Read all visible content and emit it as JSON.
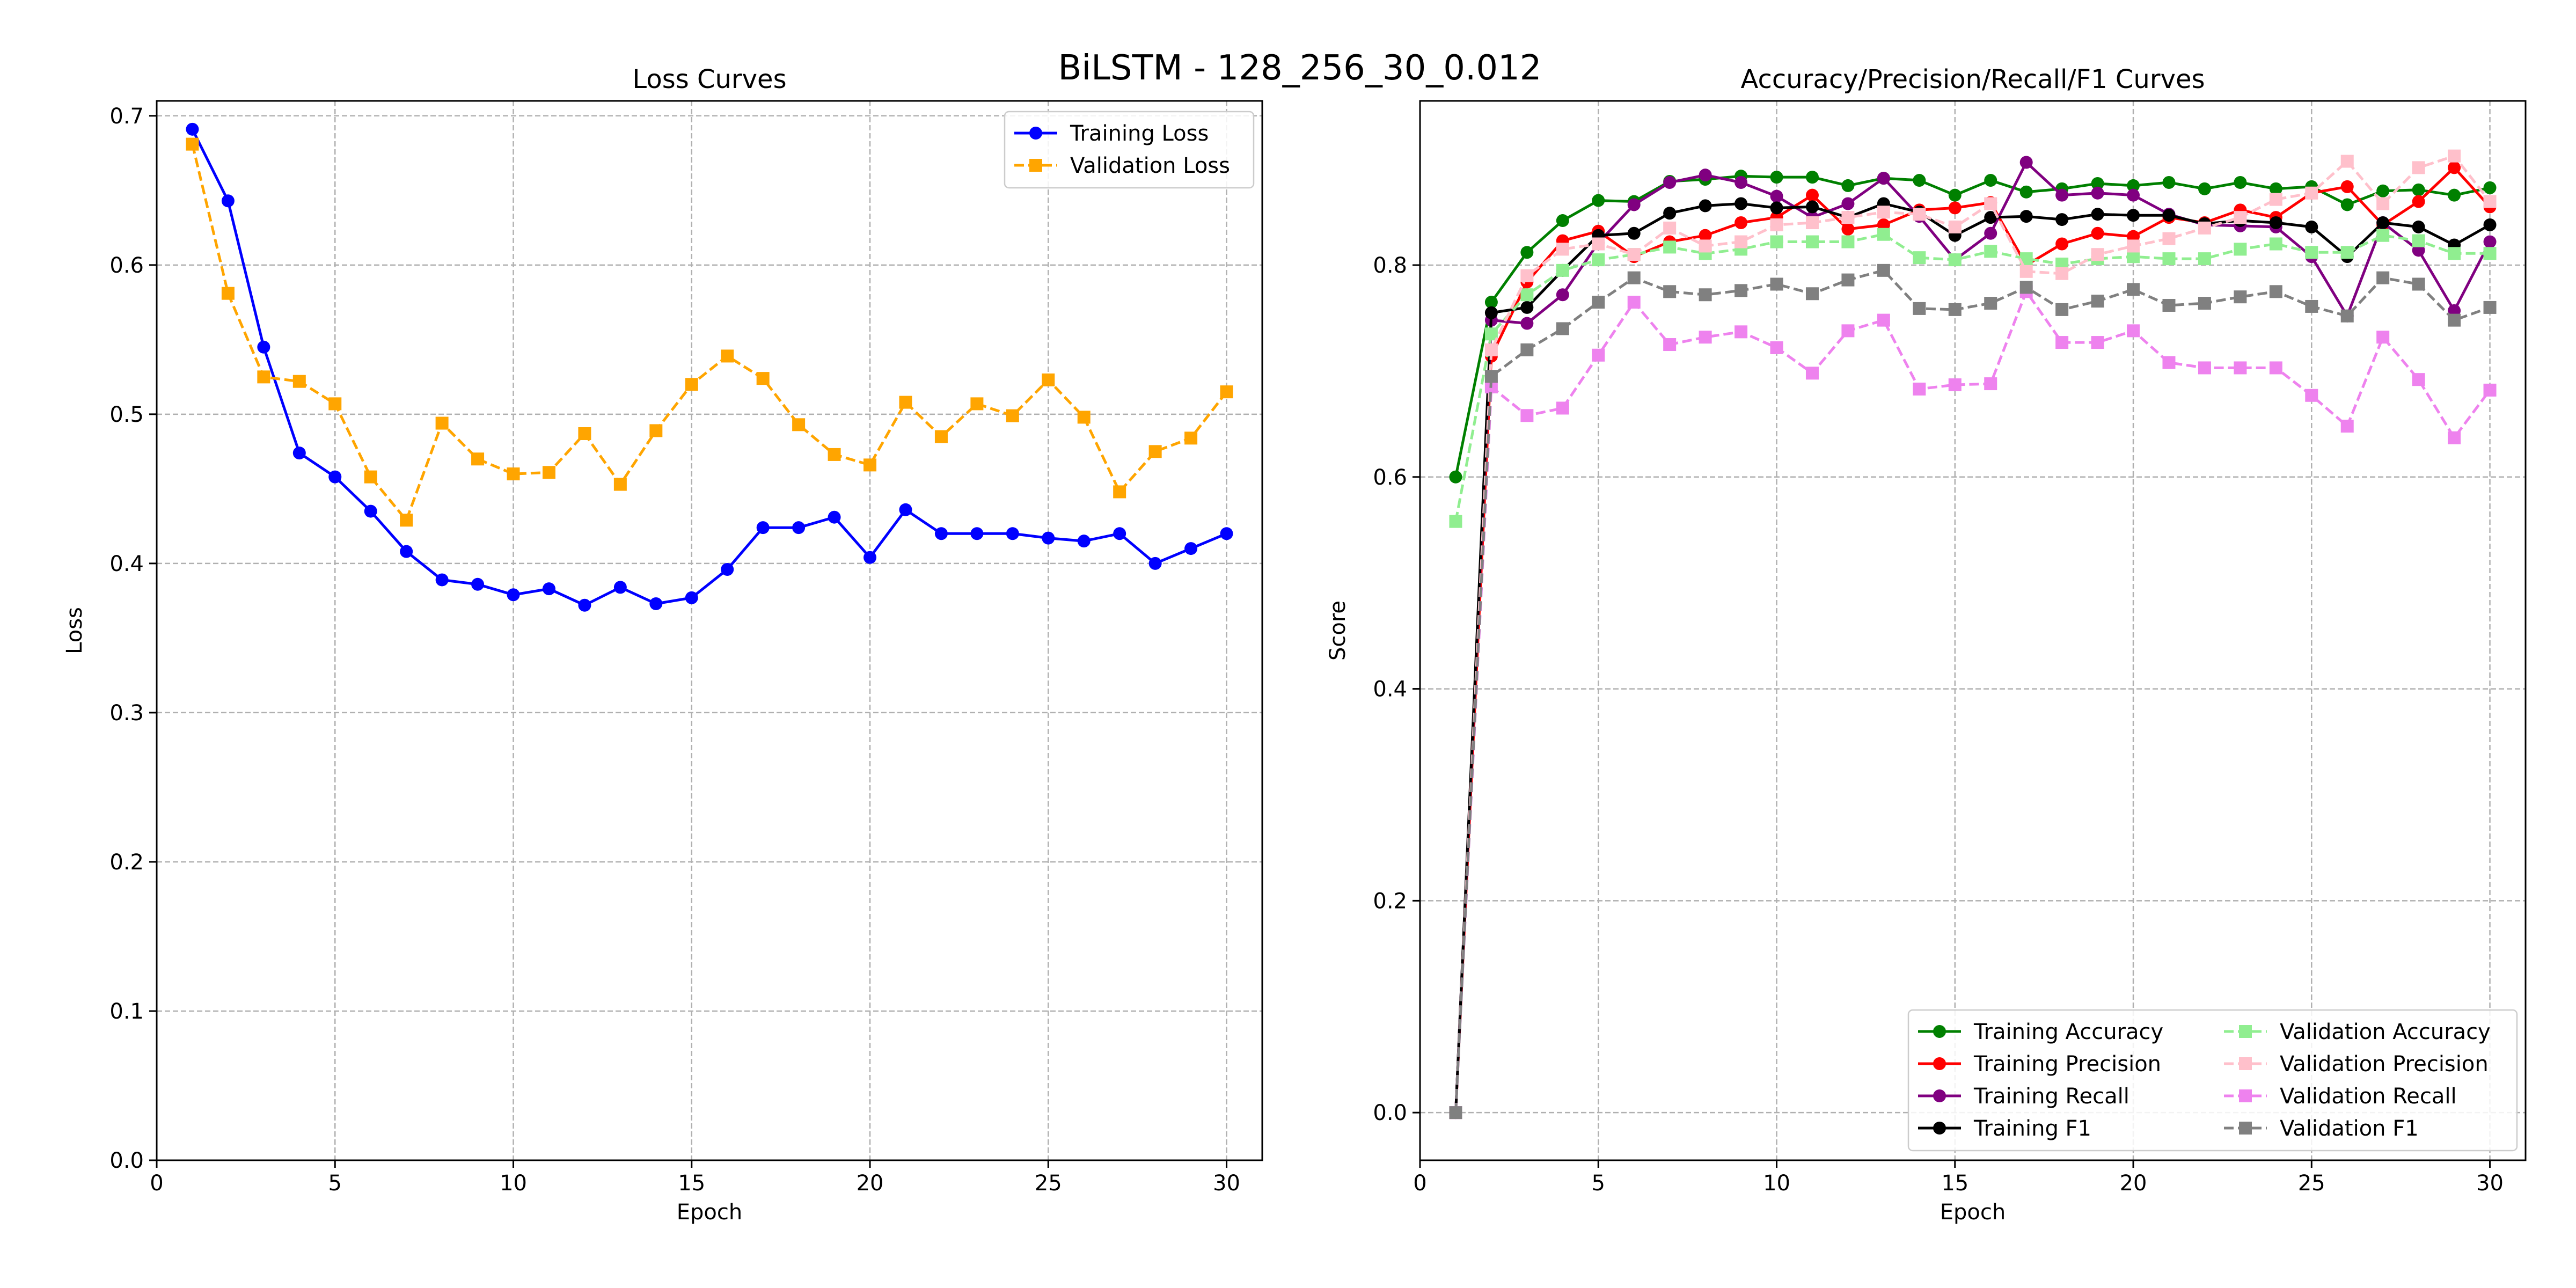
{
  "figure": {
    "suptitle": "BiLSTM - 128_256_30_0.012"
  },
  "chart_data": [
    {
      "type": "line",
      "title": "Loss Curves",
      "xlabel": "Epoch",
      "ylabel": "Loss",
      "xlim": [
        0,
        31
      ],
      "ylim": [
        0.0,
        0.71
      ],
      "xticks": [
        0,
        5,
        10,
        15,
        20,
        25,
        30
      ],
      "yticks": [
        0.0,
        0.1,
        0.2,
        0.3,
        0.4,
        0.5,
        0.6,
        0.7
      ],
      "grid": true,
      "legend_position": "upper-right",
      "legend_columns": 1,
      "x": [
        1,
        2,
        3,
        4,
        5,
        6,
        7,
        8,
        9,
        10,
        11,
        12,
        13,
        14,
        15,
        16,
        17,
        18,
        19,
        20,
        21,
        22,
        23,
        24,
        25,
        26,
        27,
        28,
        29,
        30
      ],
      "series": [
        {
          "name": "Training Loss",
          "color": "#0000ff",
          "marker": "circle",
          "dash": "solid",
          "values": [
            0.691,
            0.643,
            0.545,
            0.474,
            0.458,
            0.435,
            0.408,
            0.389,
            0.386,
            0.379,
            0.383,
            0.372,
            0.384,
            0.373,
            0.377,
            0.396,
            0.424,
            0.424,
            0.431,
            0.404,
            0.436,
            0.42,
            0.42,
            0.42,
            0.417,
            0.415,
            0.42,
            0.4,
            0.41,
            0.42
          ]
        },
        {
          "name": "Validation Loss",
          "color": "#ffa500",
          "marker": "square",
          "dash": "dashed",
          "values": [
            0.681,
            0.581,
            0.525,
            0.522,
            0.507,
            0.458,
            0.429,
            0.494,
            0.47,
            0.46,
            0.461,
            0.487,
            0.453,
            0.489,
            0.52,
            0.539,
            0.524,
            0.493,
            0.473,
            0.466,
            0.508,
            0.485,
            0.507,
            0.499,
            0.523,
            0.498,
            0.448,
            0.475,
            0.484,
            0.515
          ]
        }
      ]
    },
    {
      "type": "line",
      "title": "Accuracy/Precision/Recall/F1 Curves",
      "xlabel": "Epoch",
      "ylabel": "Score",
      "xlim": [
        0,
        31
      ],
      "ylim": [
        -0.045,
        0.955
      ],
      "xticks": [
        0,
        5,
        10,
        15,
        20,
        25,
        30
      ],
      "yticks": [
        0.0,
        0.2,
        0.4,
        0.6,
        0.8
      ],
      "grid": true,
      "legend_position": "lower-right",
      "legend_columns": 2,
      "x": [
        1,
        2,
        3,
        4,
        5,
        6,
        7,
        8,
        9,
        10,
        11,
        12,
        13,
        14,
        15,
        16,
        17,
        18,
        19,
        20,
        21,
        22,
        23,
        24,
        25,
        26,
        27,
        28,
        29,
        30
      ],
      "series": [
        {
          "name": "Training Accuracy",
          "color": "#008000",
          "marker": "circle",
          "dash": "solid",
          "values": [
            0.6,
            0.765,
            0.812,
            0.842,
            0.861,
            0.86,
            0.879,
            0.881,
            0.884,
            0.883,
            0.883,
            0.875,
            0.882,
            0.88,
            0.866,
            0.88,
            0.869,
            0.872,
            0.877,
            0.875,
            0.878,
            0.872,
            0.878,
            0.872,
            0.874,
            0.857,
            0.87,
            0.871,
            0.866,
            0.873
          ]
        },
        {
          "name": "Training Precision",
          "color": "#ff0000",
          "marker": "circle",
          "dash": "solid",
          "values": [
            0.0,
            0.714,
            0.784,
            0.823,
            0.832,
            0.808,
            0.822,
            0.828,
            0.84,
            0.845,
            0.866,
            0.834,
            0.838,
            0.852,
            0.854,
            0.859,
            0.8,
            0.82,
            0.83,
            0.827,
            0.845,
            0.84,
            0.852,
            0.845,
            0.868,
            0.874,
            0.838,
            0.86,
            0.892,
            0.855
          ]
        },
        {
          "name": "Training Recall",
          "color": "#800080",
          "marker": "circle",
          "dash": "solid",
          "values": [
            0.0,
            0.748,
            0.745,
            0.772,
            0.821,
            0.857,
            0.878,
            0.885,
            0.878,
            0.865,
            0.845,
            0.858,
            0.882,
            0.846,
            0.805,
            0.83,
            0.897,
            0.866,
            0.868,
            0.866,
            0.848,
            0.838,
            0.837,
            0.836,
            0.808,
            0.752,
            0.84,
            0.814,
            0.757,
            0.822
          ]
        },
        {
          "name": "Training F1",
          "color": "#000000",
          "marker": "circle",
          "dash": "solid",
          "values": [
            0.0,
            0.755,
            0.76,
            0.795,
            0.828,
            0.83,
            0.849,
            0.856,
            0.858,
            0.854,
            0.855,
            0.845,
            0.858,
            0.85,
            0.828,
            0.845,
            0.846,
            0.843,
            0.848,
            0.847,
            0.847,
            0.839,
            0.842,
            0.84,
            0.836,
            0.808,
            0.84,
            0.836,
            0.819,
            0.838
          ]
        },
        {
          "name": "Validation Accuracy",
          "color": "#90ee90",
          "marker": "square",
          "dash": "dashed",
          "values": [
            0.558,
            0.735,
            0.772,
            0.795,
            0.805,
            0.81,
            0.817,
            0.811,
            0.815,
            0.822,
            0.822,
            0.822,
            0.829,
            0.807,
            0.805,
            0.813,
            0.806,
            0.801,
            0.806,
            0.808,
            0.806,
            0.806,
            0.815,
            0.82,
            0.812,
            0.812,
            0.828,
            0.823,
            0.811,
            0.811
          ]
        },
        {
          "name": "Validation Precision",
          "color": "#ffc0cb",
          "marker": "square",
          "dash": "dashed",
          "values": [
            0.0,
            0.72,
            0.79,
            0.815,
            0.82,
            0.81,
            0.835,
            0.818,
            0.822,
            0.838,
            0.84,
            0.845,
            0.85,
            0.848,
            0.836,
            0.858,
            0.794,
            0.792,
            0.81,
            0.818,
            0.825,
            0.835,
            0.845,
            0.862,
            0.868,
            0.898,
            0.858,
            0.892,
            0.903,
            0.86
          ]
        },
        {
          "name": "Validation Recall",
          "color": "#ee82ee",
          "marker": "square",
          "dash": "dashed",
          "values": [
            0.0,
            0.685,
            0.658,
            0.665,
            0.715,
            0.765,
            0.725,
            0.732,
            0.737,
            0.722,
            0.698,
            0.738,
            0.748,
            0.683,
            0.687,
            0.688,
            0.775,
            0.727,
            0.727,
            0.738,
            0.708,
            0.703,
            0.703,
            0.703,
            0.677,
            0.648,
            0.732,
            0.692,
            0.637,
            0.682
          ]
        },
        {
          "name": "Validation F1",
          "color": "#808080",
          "marker": "square",
          "dash": "dashed",
          "values": [
            0.0,
            0.695,
            0.72,
            0.74,
            0.765,
            0.788,
            0.775,
            0.772,
            0.776,
            0.782,
            0.773,
            0.786,
            0.795,
            0.759,
            0.758,
            0.764,
            0.779,
            0.758,
            0.766,
            0.777,
            0.762,
            0.764,
            0.77,
            0.775,
            0.761,
            0.752,
            0.788,
            0.782,
            0.748,
            0.76
          ]
        }
      ]
    }
  ]
}
